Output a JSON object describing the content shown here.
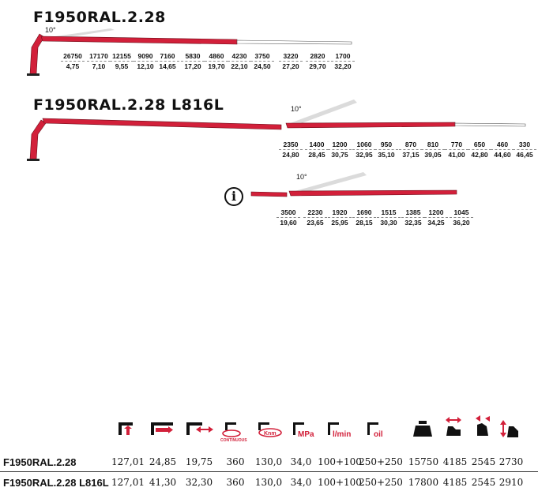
{
  "crane1": {
    "title": "F1950RAL.2.28",
    "angle": "10°",
    "loads": [
      {
        "kg": "26750",
        "m": "4,75"
      },
      {
        "kg": "17170",
        "m": "7,10"
      },
      {
        "kg": "12155",
        "m": "9,55"
      },
      {
        "kg": "9090",
        "m": "12,10"
      },
      {
        "kg": "7160",
        "m": "14,65"
      },
      {
        "kg": "5830",
        "m": "17,20"
      },
      {
        "kg": "4860",
        "m": "19,70"
      },
      {
        "kg": "4230",
        "m": "22,10"
      },
      {
        "kg": "3750",
        "m": "24,50"
      },
      {
        "kg": "3220",
        "m": "27,20"
      },
      {
        "kg": "2820",
        "m": "29,70"
      },
      {
        "kg": "1700",
        "m": "32,20"
      }
    ]
  },
  "crane2": {
    "title": "F1950RAL.2.28 L816L",
    "angle": "10°",
    "loads": [
      {
        "kg": "2350",
        "m": "24,80"
      },
      {
        "kg": "1400",
        "m": "28,45"
      },
      {
        "kg": "1200",
        "m": "30,75"
      },
      {
        "kg": "1060",
        "m": "32,95"
      },
      {
        "kg": "950",
        "m": "35,10"
      },
      {
        "kg": "870",
        "m": "37,15"
      },
      {
        "kg": "810",
        "m": "39,05"
      },
      {
        "kg": "770",
        "m": "41,00"
      },
      {
        "kg": "650",
        "m": "42,80"
      },
      {
        "kg": "460",
        "m": "44,60"
      },
      {
        "kg": "330",
        "m": "46,45"
      }
    ]
  },
  "crane3": {
    "angle": "10°",
    "info_symbol": "i",
    "loads": [
      {
        "kg": "3500",
        "m": "19,60"
      },
      {
        "kg": "2230",
        "m": "23,65"
      },
      {
        "kg": "1920",
        "m": "25,95"
      },
      {
        "kg": "1690",
        "m": "28,15"
      },
      {
        "kg": "1515",
        "m": "30,30"
      },
      {
        "kg": "1385",
        "m": "32,35"
      },
      {
        "kg": "1200",
        "m": "34,25"
      },
      {
        "kg": "1045",
        "m": "36,20"
      }
    ]
  },
  "icons": {
    "continuous": "CONTINUOUS",
    "knm": "Knm",
    "mpa": "MPa",
    "lmin": "l/min",
    "oil": "oil"
  },
  "specs": [
    {
      "model": "F1950RAL.2.28",
      "values": [
        "127,01",
        "24,85",
        "19,75",
        "360",
        "130,0",
        "34,0",
        "100+100",
        "250+250",
        "15750",
        "4185",
        "2545",
        "2730"
      ]
    },
    {
      "model": "F1950RAL.2.28 L816L",
      "values": [
        "127,01",
        "41,30",
        "32,30",
        "360",
        "130,0",
        "34,0",
        "100+100",
        "250+250",
        "17800",
        "4185",
        "2545",
        "2910"
      ]
    }
  ],
  "colors": {
    "boom_red": "#d2203a",
    "boom_white": "#ffffff",
    "accent": "#d2203a"
  }
}
